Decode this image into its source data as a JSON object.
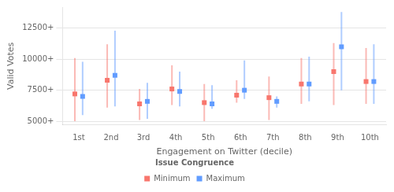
{
  "chart_data": {
    "type": "errorbar",
    "xlabel": "Engagement on Twitter (decile)",
    "ylabel": "Valid Votes",
    "legend_title": "Issue Congruence",
    "categories": [
      "1st",
      "2nd",
      "3rd",
      "4th",
      "5th",
      "6th",
      "7th",
      "8th",
      "9th",
      "10th"
    ],
    "series": [
      {
        "name": "Minimum",
        "color": "#F8766D",
        "marker": "square",
        "values": [
          7200,
          8300,
          6400,
          7600,
          6500,
          7100,
          6900,
          8000,
          9000,
          8200
        ],
        "lower": [
          5000,
          6100,
          5100,
          6300,
          5000,
          6500,
          5100,
          6400,
          6300,
          6400
        ],
        "upper": [
          10100,
          11200,
          7600,
          9500,
          8000,
          8300,
          8600,
          10100,
          11300,
          10900
        ]
      },
      {
        "name": "Maximum",
        "color": "#619CFF",
        "marker": "square",
        "values": [
          7000,
          8700,
          6600,
          7400,
          6400,
          7500,
          6600,
          8000,
          11000,
          8200
        ],
        "lower": [
          5500,
          6200,
          5200,
          6200,
          6000,
          6800,
          6100,
          6600,
          7500,
          6400
        ],
        "upper": [
          9800,
          12300,
          8100,
          9000,
          7900,
          9900,
          7000,
          10200,
          13800,
          11200
        ]
      }
    ],
    "ylim": [
      4700,
      14200
    ],
    "yticks": [
      {
        "value": 5000,
        "label": "5000+"
      },
      {
        "value": 7500,
        "label": "7500+"
      },
      {
        "value": 10000,
        "label": "10000+"
      },
      {
        "value": 12500,
        "label": "12500+"
      }
    ],
    "grid": "y",
    "legend": "bottom"
  }
}
